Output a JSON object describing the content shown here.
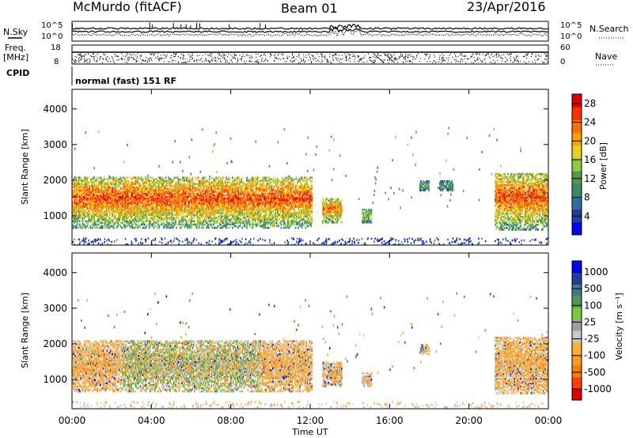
{
  "header": {
    "station": "McMurdo (fitACF)",
    "beam": "Beam 01",
    "date": "23/Apr/2016"
  },
  "noise_panel": {
    "left_label": "N.Sky",
    "right_label": "N.Search",
    "left_ticks": [
      "10^5",
      "10^0"
    ],
    "right_ticks": [
      "10^5",
      "10^0"
    ]
  },
  "freq_panel": {
    "left_label_top": "Freq.",
    "left_label_bottom": "[MHz]",
    "left_ticks": [
      "18",
      "8"
    ],
    "right_ticks": [
      "60",
      "0"
    ],
    "right_label": "Nave",
    "cpid_label": "CPID",
    "cpid_text": "normal (fast) 151 RF"
  },
  "colors": {
    "power_scale": [
      "#0000ff",
      "#1e3fa0",
      "#2f6e9e",
      "#3a8a6a",
      "#4f9a4f",
      "#8ccc3a",
      "#e8d020",
      "#ffa000",
      "#ff7000",
      "#ff3000",
      "#e00000"
    ],
    "velocity_scale": [
      "#e00000",
      "#ff4000",
      "#ff7a00",
      "#ff9a20",
      "#ffb030",
      "#c8c8c8",
      "#a0a0a0",
      "#7acc3a",
      "#4f9a4f",
      "#3a7a8a",
      "#1e3fa0",
      "#0000ff"
    ]
  },
  "chart_data": [
    {
      "type": "heatmap",
      "title": "Power",
      "xlabel": "Time UT",
      "ylabel": "Slant Range [km]",
      "x_ticks": [
        "00:00",
        "04:00",
        "08:00",
        "12:00",
        "16:00",
        "20:00",
        "00:00"
      ],
      "y_ticks": [
        "1000",
        "2000",
        "3000",
        "4000"
      ],
      "ylim": [
        180,
        4550
      ],
      "colorbar_label": "Power [dB]",
      "colorbar_ticks": [
        "4",
        "8",
        "12",
        "16",
        "20",
        "24",
        "28"
      ],
      "colorbar_range": [
        0,
        30
      ],
      "patches": [
        {
          "t0": 0.0,
          "t1": 12.1,
          "r0": 650,
          "r1": 2100,
          "level": 24
        },
        {
          "t0": 12.6,
          "t1": 13.6,
          "r0": 800,
          "r1": 1500,
          "level": 22
        },
        {
          "t0": 14.6,
          "t1": 15.1,
          "r0": 800,
          "r1": 1200,
          "level": 14
        },
        {
          "t0": 17.5,
          "t1": 18.0,
          "r0": 1700,
          "r1": 2000,
          "level": 12
        },
        {
          "t0": 18.5,
          "t1": 19.2,
          "r0": 1700,
          "r1": 2000,
          "level": 10
        },
        {
          "t0": 21.3,
          "t1": 24.0,
          "r0": 600,
          "r1": 2200,
          "level": 24
        }
      ],
      "ground_scatter_band": {
        "r0": 200,
        "r1": 400
      }
    },
    {
      "type": "heatmap",
      "title": "Velocity",
      "xlabel": "Time UT",
      "ylabel": "Slant Range [km]",
      "x_ticks": [
        "00:00",
        "04:00",
        "08:00",
        "12:00",
        "16:00",
        "20:00",
        "00:00"
      ],
      "y_ticks": [
        "1000",
        "2000",
        "3000",
        "4000"
      ],
      "ylim": [
        180,
        4550
      ],
      "colorbar_label": "Velocity [m s⁻¹]",
      "colorbar_ticks": [
        "1000",
        "500",
        "100",
        "25",
        "-25",
        "-100",
        "-500",
        "-1000"
      ],
      "patches": [
        {
          "t0": 0.0,
          "t1": 12.1,
          "r0": 650,
          "r1": 2100,
          "velocity": -300
        },
        {
          "t0": 12.6,
          "t1": 13.6,
          "r0": 800,
          "r1": 1500,
          "velocity": -200
        },
        {
          "t0": 14.6,
          "t1": 15.1,
          "r0": 800,
          "r1": 1200,
          "velocity": -150
        },
        {
          "t0": 17.5,
          "t1": 18.0,
          "r0": 1700,
          "r1": 2000,
          "velocity": -200
        },
        {
          "t0": 21.3,
          "t1": 24.0,
          "r0": 600,
          "r1": 2200,
          "velocity": -300
        }
      ]
    }
  ],
  "axis_title_x": "Time UT"
}
